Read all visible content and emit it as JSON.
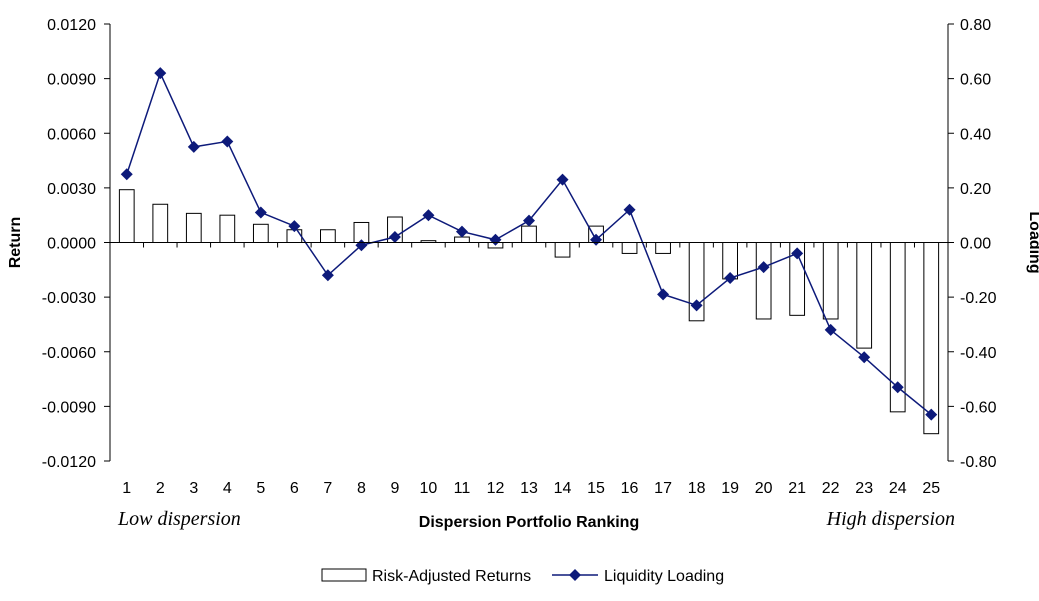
{
  "chart_data": {
    "type": "bar",
    "categories": [
      "1",
      "2",
      "3",
      "4",
      "5",
      "6",
      "7",
      "8",
      "9",
      "10",
      "11",
      "12",
      "13",
      "14",
      "15",
      "16",
      "17",
      "18",
      "19",
      "20",
      "21",
      "22",
      "23",
      "24",
      "25"
    ],
    "xlabel": "Dispersion Portfolio Ranking",
    "ylabel_left": "Return",
    "ylabel_right": "Loading",
    "annotations": {
      "left": "Low dispersion",
      "right": "High dispersion"
    },
    "y_left": {
      "min": -0.012,
      "max": 0.012,
      "step": 0.003,
      "ticks": [
        "0.0120",
        "0.0090",
        "0.0060",
        "0.0030",
        "0.0000",
        "-0.0030",
        "-0.0060",
        "-0.0090",
        "-0.0120"
      ]
    },
    "y_right": {
      "min": -0.8,
      "max": 0.8,
      "step": 0.2,
      "ticks": [
        "0.80",
        "0.60",
        "0.40",
        "0.20",
        "0.00",
        "-0.20",
        "-0.40",
        "-0.60",
        "-0.80"
      ]
    },
    "grid": false,
    "legend_position": "bottom-center",
    "series": [
      {
        "name": "Risk-Adjusted Returns",
        "type": "bar",
        "axis": "left",
        "fill": "#ffffff",
        "stroke": "#000000",
        "values": [
          0.0029,
          0.0021,
          0.0016,
          0.0015,
          0.001,
          0.0007,
          0.0007,
          0.0011,
          0.0014,
          0.0001,
          0.0003,
          -0.0003,
          0.0009,
          -0.0008,
          0.0009,
          -0.0006,
          -0.0006,
          -0.0043,
          -0.002,
          -0.0042,
          -0.004,
          -0.0042,
          -0.0058,
          -0.0093,
          -0.0105
        ]
      },
      {
        "name": "Liquidity Loading",
        "type": "line",
        "axis": "right",
        "color": "#0d1a7a",
        "marker": "diamond",
        "values": [
          0.25,
          0.62,
          0.35,
          0.37,
          0.11,
          0.06,
          -0.12,
          -0.01,
          0.02,
          0.1,
          0.04,
          0.01,
          0.08,
          0.23,
          0.01,
          0.12,
          -0.19,
          -0.23,
          -0.13,
          -0.09,
          -0.04,
          -0.32,
          -0.42,
          -0.53,
          -0.63
        ]
      }
    ]
  }
}
